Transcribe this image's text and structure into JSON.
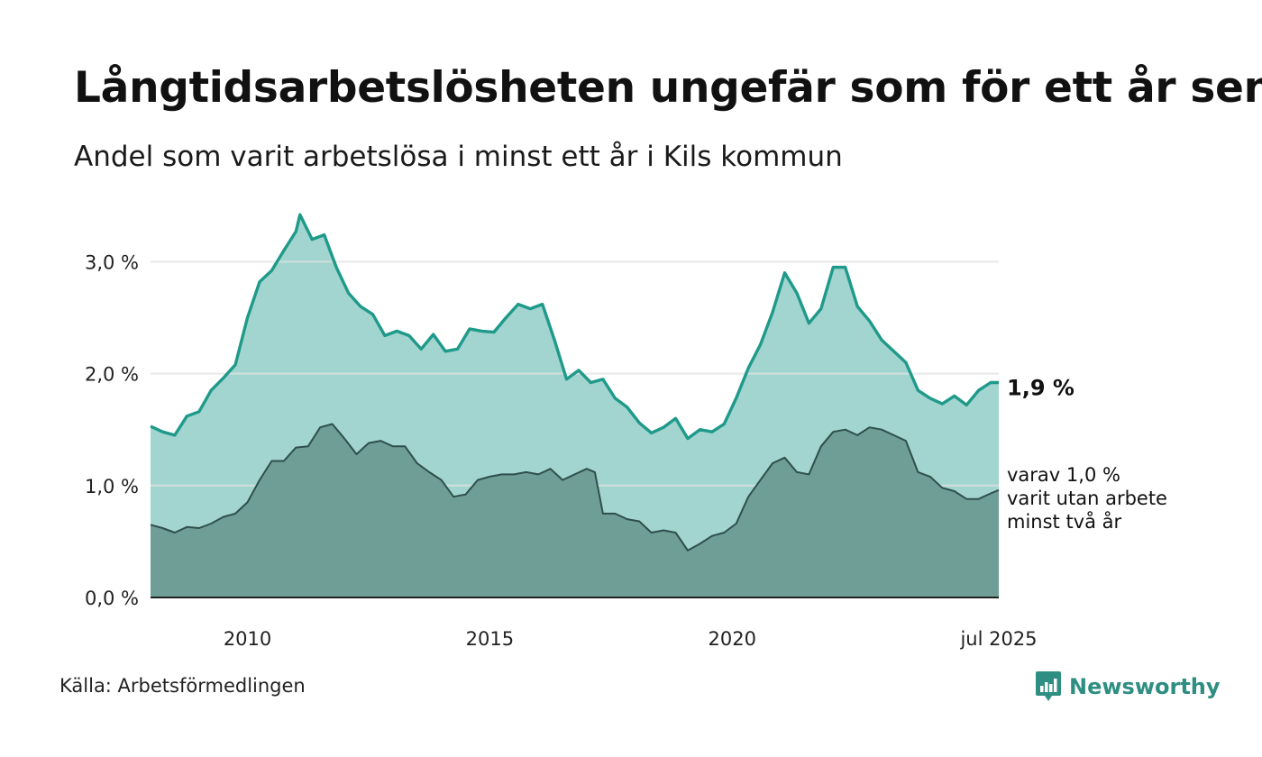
{
  "title": "Långtidsarbetslösheten ungefär som för ett år sen",
  "subtitle": "Andel som varit arbetslösa i minst ett år i Kils kommun",
  "source": "Källa: Arbetsförmedlingen",
  "brand": "Newsworthy",
  "colors": {
    "upper_fill": "#a2d5cf",
    "upper_line": "#1f9a8a",
    "lower_fill": "#6f9e97",
    "lower_line": "#2f4f4c",
    "brand": "#2e8e82",
    "grid": "#e2e2e2"
  },
  "chart_data": {
    "type": "area",
    "x_unit": "month",
    "x_start": "2008-01",
    "x_end": "2025-07",
    "x_ticks": [
      {
        "date": "2010-01",
        "label": "2010"
      },
      {
        "date": "2015-01",
        "label": "2015"
      },
      {
        "date": "2020-01",
        "label": "2020"
      },
      {
        "date": "2025-07",
        "label": "jul 2025"
      }
    ],
    "y_ticks": [
      {
        "value": 0,
        "label": "0,0 %"
      },
      {
        "value": 1,
        "label": "1,0 %"
      },
      {
        "value": 2,
        "label": "2,0 %"
      },
      {
        "value": 3,
        "label": "3,0 %"
      }
    ],
    "ylim": [
      0,
      3.5
    ],
    "grid": true,
    "series": [
      {
        "name": "minst ett år",
        "end_label": "1,9 %",
        "points": [
          [
            "2008-01",
            1.53
          ],
          [
            "2008-04",
            1.48
          ],
          [
            "2008-07",
            1.45
          ],
          [
            "2008-10",
            1.62
          ],
          [
            "2009-01",
            1.66
          ],
          [
            "2009-04",
            1.85
          ],
          [
            "2009-07",
            1.96
          ],
          [
            "2009-10",
            2.08
          ],
          [
            "2010-01",
            2.5
          ],
          [
            "2010-04",
            2.82
          ],
          [
            "2010-07",
            2.92
          ],
          [
            "2010-10",
            3.1
          ],
          [
            "2011-01",
            3.27
          ],
          [
            "2011-02",
            3.42
          ],
          [
            "2011-05",
            3.2
          ],
          [
            "2011-08",
            3.24
          ],
          [
            "2011-11",
            2.95
          ],
          [
            "2012-02",
            2.72
          ],
          [
            "2012-05",
            2.6
          ],
          [
            "2012-08",
            2.53
          ],
          [
            "2012-11",
            2.34
          ],
          [
            "2013-02",
            2.38
          ],
          [
            "2013-05",
            2.34
          ],
          [
            "2013-08",
            2.22
          ],
          [
            "2013-11",
            2.35
          ],
          [
            "2014-02",
            2.2
          ],
          [
            "2014-05",
            2.22
          ],
          [
            "2014-08",
            2.4
          ],
          [
            "2014-11",
            2.38
          ],
          [
            "2015-02",
            2.37
          ],
          [
            "2015-05",
            2.5
          ],
          [
            "2015-08",
            2.62
          ],
          [
            "2015-11",
            2.58
          ],
          [
            "2016-02",
            2.62
          ],
          [
            "2016-05",
            2.3
          ],
          [
            "2016-08",
            1.95
          ],
          [
            "2016-11",
            2.03
          ],
          [
            "2017-02",
            1.92
          ],
          [
            "2017-05",
            1.95
          ],
          [
            "2017-08",
            1.78
          ],
          [
            "2017-11",
            1.7
          ],
          [
            "2018-02",
            1.56
          ],
          [
            "2018-05",
            1.47
          ],
          [
            "2018-08",
            1.52
          ],
          [
            "2018-11",
            1.6
          ],
          [
            "2019-02",
            1.42
          ],
          [
            "2019-05",
            1.5
          ],
          [
            "2019-08",
            1.48
          ],
          [
            "2019-11",
            1.55
          ],
          [
            "2020-02",
            1.78
          ],
          [
            "2020-05",
            2.05
          ],
          [
            "2020-08",
            2.26
          ],
          [
            "2020-11",
            2.55
          ],
          [
            "2021-02",
            2.9
          ],
          [
            "2021-05",
            2.72
          ],
          [
            "2021-08",
            2.45
          ],
          [
            "2021-11",
            2.58
          ],
          [
            "2022-02",
            2.95
          ],
          [
            "2022-05",
            2.95
          ],
          [
            "2022-08",
            2.6
          ],
          [
            "2022-11",
            2.47
          ],
          [
            "2023-02",
            2.3
          ],
          [
            "2023-05",
            2.2
          ],
          [
            "2023-08",
            2.1
          ],
          [
            "2023-11",
            1.85
          ],
          [
            "2024-02",
            1.78
          ],
          [
            "2024-05",
            1.73
          ],
          [
            "2024-08",
            1.8
          ],
          [
            "2024-11",
            1.72
          ],
          [
            "2025-02",
            1.85
          ],
          [
            "2025-05",
            1.92
          ],
          [
            "2025-07",
            1.92
          ]
        ]
      },
      {
        "name": "minst två år",
        "end_label": "varav 1,0 % varit utan arbete minst två år",
        "end_label_lines": [
          "varav 1,0 %",
          "varit utan arbete",
          "minst två år"
        ],
        "points": [
          [
            "2008-01",
            0.65
          ],
          [
            "2008-04",
            0.62
          ],
          [
            "2008-07",
            0.58
          ],
          [
            "2008-10",
            0.63
          ],
          [
            "2009-01",
            0.62
          ],
          [
            "2009-04",
            0.66
          ],
          [
            "2009-07",
            0.72
          ],
          [
            "2009-10",
            0.75
          ],
          [
            "2010-01",
            0.85
          ],
          [
            "2010-04",
            1.05
          ],
          [
            "2010-07",
            1.22
          ],
          [
            "2010-10",
            1.22
          ],
          [
            "2011-01",
            1.34
          ],
          [
            "2011-04",
            1.35
          ],
          [
            "2011-07",
            1.52
          ],
          [
            "2011-10",
            1.55
          ],
          [
            "2012-01",
            1.42
          ],
          [
            "2012-04",
            1.28
          ],
          [
            "2012-07",
            1.38
          ],
          [
            "2012-10",
            1.4
          ],
          [
            "2013-01",
            1.35
          ],
          [
            "2013-04",
            1.35
          ],
          [
            "2013-07",
            1.2
          ],
          [
            "2013-10",
            1.12
          ],
          [
            "2014-01",
            1.05
          ],
          [
            "2014-04",
            0.9
          ],
          [
            "2014-07",
            0.92
          ],
          [
            "2014-10",
            1.05
          ],
          [
            "2015-01",
            1.08
          ],
          [
            "2015-04",
            1.1
          ],
          [
            "2015-07",
            1.1
          ],
          [
            "2015-10",
            1.12
          ],
          [
            "2016-01",
            1.1
          ],
          [
            "2016-04",
            1.15
          ],
          [
            "2016-07",
            1.05
          ],
          [
            "2016-10",
            1.1
          ],
          [
            "2017-01",
            1.15
          ],
          [
            "2017-03",
            1.12
          ],
          [
            "2017-05",
            0.75
          ],
          [
            "2017-08",
            0.75
          ],
          [
            "2017-11",
            0.7
          ],
          [
            "2018-02",
            0.68
          ],
          [
            "2018-05",
            0.58
          ],
          [
            "2018-08",
            0.6
          ],
          [
            "2018-11",
            0.58
          ],
          [
            "2019-02",
            0.42
          ],
          [
            "2019-05",
            0.48
          ],
          [
            "2019-08",
            0.55
          ],
          [
            "2019-11",
            0.58
          ],
          [
            "2020-02",
            0.66
          ],
          [
            "2020-05",
            0.9
          ],
          [
            "2020-08",
            1.05
          ],
          [
            "2020-11",
            1.2
          ],
          [
            "2021-02",
            1.25
          ],
          [
            "2021-05",
            1.12
          ],
          [
            "2021-08",
            1.1
          ],
          [
            "2021-11",
            1.35
          ],
          [
            "2022-02",
            1.48
          ],
          [
            "2022-05",
            1.5
          ],
          [
            "2022-08",
            1.45
          ],
          [
            "2022-11",
            1.52
          ],
          [
            "2023-02",
            1.5
          ],
          [
            "2023-05",
            1.45
          ],
          [
            "2023-08",
            1.4
          ],
          [
            "2023-11",
            1.12
          ],
          [
            "2024-02",
            1.08
          ],
          [
            "2024-05",
            0.98
          ],
          [
            "2024-08",
            0.95
          ],
          [
            "2024-11",
            0.88
          ],
          [
            "2025-02",
            0.88
          ],
          [
            "2025-05",
            0.93
          ],
          [
            "2025-07",
            0.96
          ]
        ]
      }
    ]
  }
}
